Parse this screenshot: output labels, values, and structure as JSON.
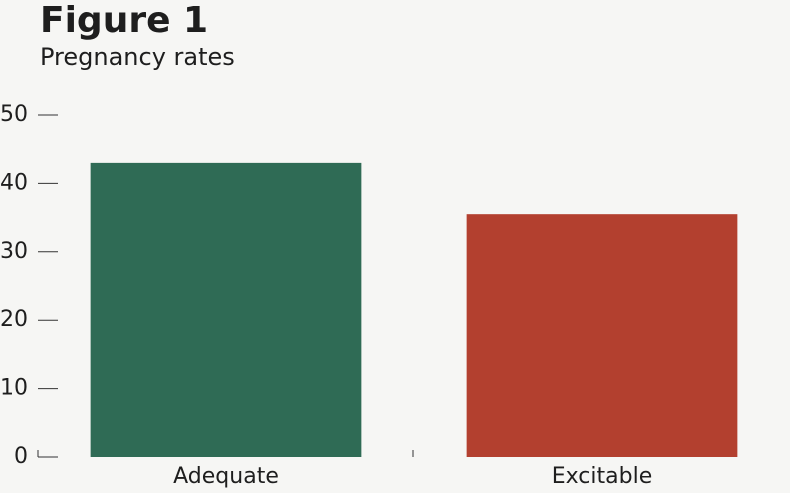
{
  "chart_data": {
    "type": "bar",
    "title": "Figure 1",
    "subtitle": "Pregnancy rates",
    "categories": [
      "Adequate",
      "Excitable"
    ],
    "values": [
      43,
      35.5
    ],
    "colors": [
      "#2f6b55",
      "#b3402f"
    ],
    "ylim": [
      0,
      50
    ],
    "yticks": [
      0,
      10,
      20,
      30,
      40,
      50
    ],
    "grid": false
  }
}
